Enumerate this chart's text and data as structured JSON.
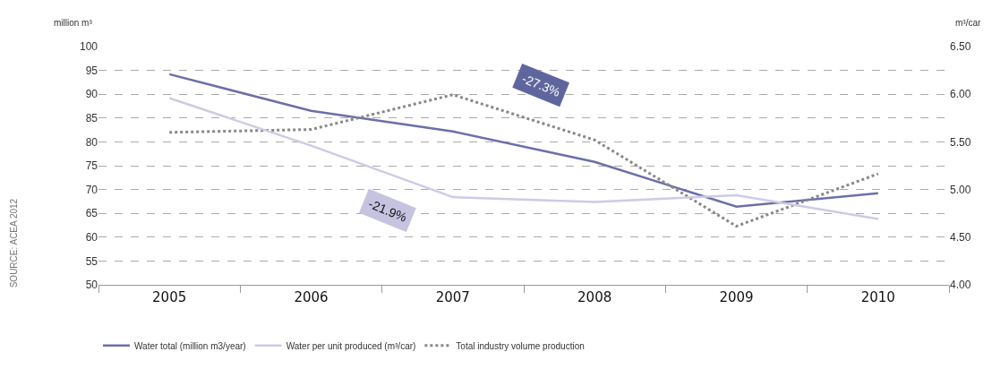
{
  "chart_data": {
    "type": "line",
    "categories": [
      "2005",
      "2006",
      "2007",
      "2008",
      "2009",
      "2010"
    ],
    "series": [
      {
        "name": "Water total (million m3/year)",
        "color": "#6a70a8",
        "values": [
          94.2,
          86.5,
          82.2,
          75.8,
          66.4,
          69.2
        ]
      },
      {
        "name": "Water per unit produced (m³/car)",
        "color": "#cdcbe6",
        "axis": "y2",
        "values": [
          5.96,
          5.46,
          4.92,
          4.87,
          4.94,
          4.69
        ]
      },
      {
        "name": "Total industry volume production",
        "color": "#888888",
        "line_style": "dotted",
        "values": [
          82.0,
          82.6,
          89.9,
          80.4,
          62.3,
          73.3
        ]
      }
    ],
    "ylabel": "million m³",
    "y2label": "m³/car",
    "ylim": [
      50,
      100
    ],
    "yticks": [
      50,
      55,
      60,
      65,
      70,
      75,
      80,
      85,
      90,
      95,
      100
    ],
    "y2lim": [
      4,
      6.5
    ],
    "y2ticks": [
      {
        "value": 4,
        "label": "4.00"
      },
      {
        "value": 4.5,
        "label": "4.50"
      },
      {
        "value": 5,
        "label": "5.00"
      },
      {
        "value": 5.5,
        "label": "5.50"
      },
      {
        "value": 6,
        "label": "6.00"
      },
      {
        "value": 6.5,
        "label": "6.50"
      }
    ],
    "grid": "y",
    "legend": "bottom left",
    "marker": "none",
    "line_style": "solid",
    "annotations": [
      "-27.3%",
      "-21.9%",
      "SOURCE: ACEA 2012"
    ]
  }
}
